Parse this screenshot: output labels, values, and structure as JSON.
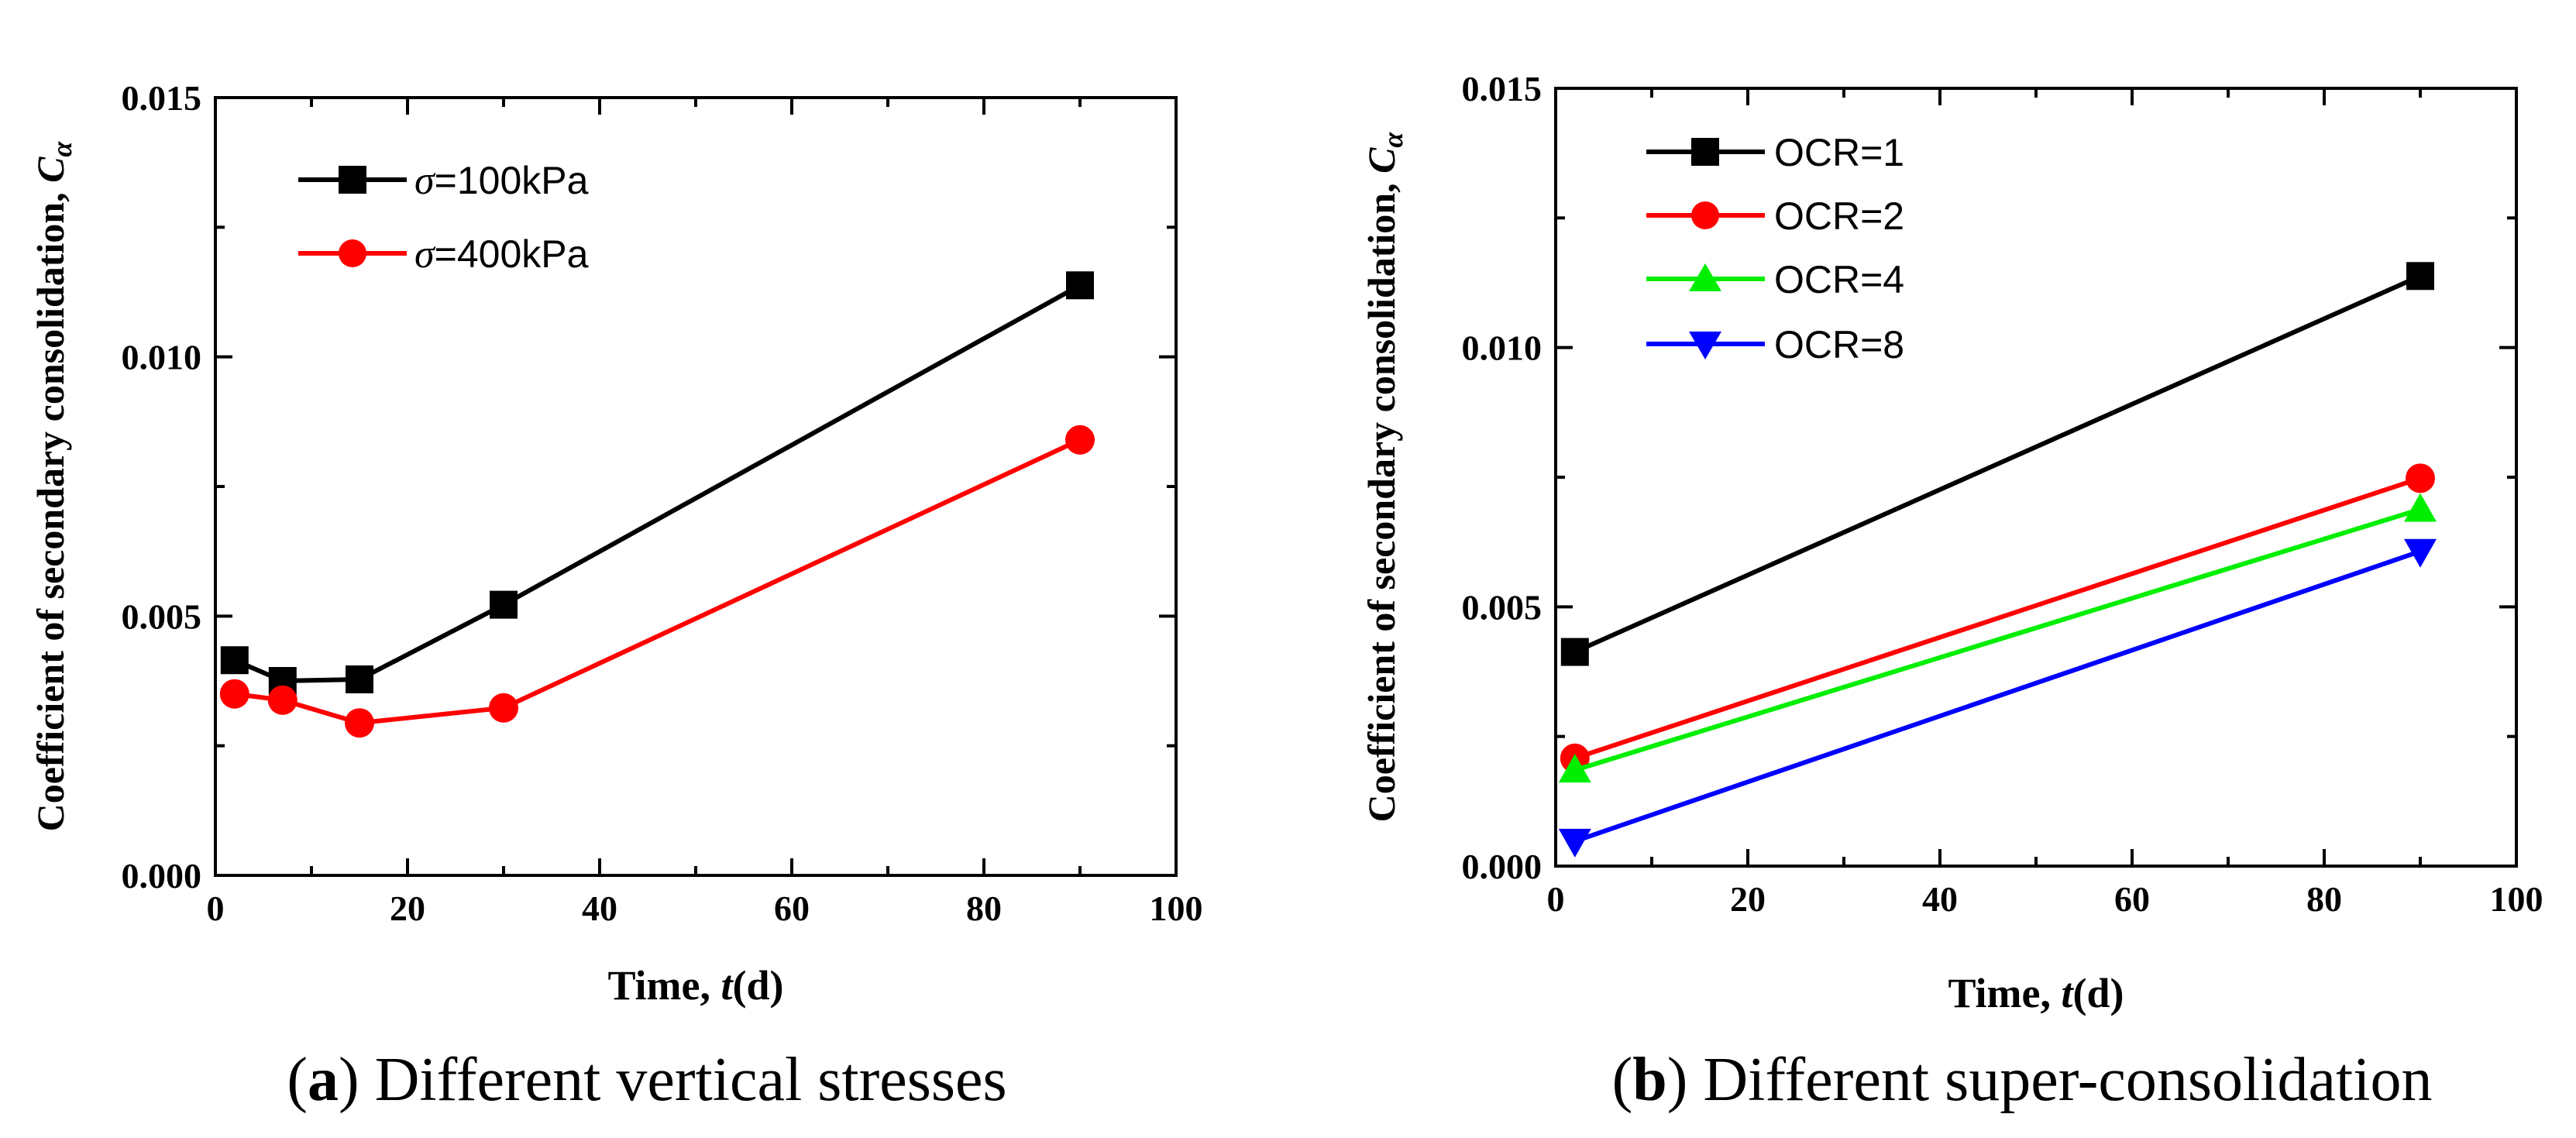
{
  "chart_data": [
    {
      "type": "line",
      "caption": {
        "open": "(",
        "letter": "a",
        "close": ")",
        "text": " Different vertical stresses"
      },
      "xlabel": {
        "text": "Time, ",
        "italic": "t",
        "unit": "(d)"
      },
      "ylabel": {
        "text": "Coefficient of secondary consolidation, ",
        "italic": "C",
        "subscript": "α"
      },
      "xlim": [
        0,
        100
      ],
      "ylim": [
        0,
        0.015
      ],
      "xticks": [
        "0",
        "20",
        "40",
        "60",
        "80",
        "100"
      ],
      "yticks": [
        "0.000",
        "0.005",
        "0.010",
        "0.015"
      ],
      "grid": false,
      "legend_position": "top-left",
      "series": [
        {
          "name": "σ=100kPa",
          "symbol": "σ",
          "label_rest": "=100kPa",
          "color": "#000000",
          "marker": "square",
          "x": [
            2,
            7,
            15,
            30,
            90
          ],
          "y": [
            0.00415,
            0.00375,
            0.00378,
            0.00522,
            0.01138
          ]
        },
        {
          "name": "σ=400kPa",
          "symbol": "σ",
          "label_rest": "=400kPa",
          "color": "#ff0000",
          "marker": "circle",
          "x": [
            2,
            7,
            15,
            30,
            90
          ],
          "y": [
            0.0035,
            0.00338,
            0.00294,
            0.00323,
            0.0084
          ]
        }
      ]
    },
    {
      "type": "line",
      "caption": {
        "open": "(",
        "letter": "b",
        "close": ")",
        "text": " Different super-consolidation"
      },
      "xlabel": {
        "text": "Time, ",
        "italic": "t",
        "unit": "(d)"
      },
      "ylabel": {
        "text": "Coefficient of secondary consolidation, ",
        "italic": "C",
        "subscript": "α"
      },
      "xlim": [
        0,
        100
      ],
      "ylim": [
        0,
        0.015
      ],
      "xticks": [
        "0",
        "20",
        "40",
        "60",
        "80",
        "100"
      ],
      "yticks": [
        "0.000",
        "0.005",
        "0.010",
        "0.015"
      ],
      "grid": false,
      "legend_position": "top-left",
      "series": [
        {
          "name": "OCR=1",
          "symbol": "",
          "label_rest": "OCR=1",
          "color": "#000000",
          "marker": "square",
          "x": [
            2,
            90
          ],
          "y": [
            0.00413,
            0.01138
          ]
        },
        {
          "name": "OCR=2",
          "symbol": "",
          "label_rest": "OCR=2",
          "color": "#ff0000",
          "marker": "circle",
          "x": [
            2,
            90
          ],
          "y": [
            0.00208,
            0.00748
          ]
        },
        {
          "name": "OCR=4",
          "symbol": "",
          "label_rest": "OCR=4",
          "color": "#00ee00",
          "marker": "triangle-up",
          "x": [
            2,
            90
          ],
          "y": [
            0.00185,
            0.00688
          ]
        },
        {
          "name": "OCR=8",
          "symbol": "",
          "label_rest": "OCR=8",
          "color": "#0000ff",
          "marker": "triangle-down",
          "x": [
            2,
            90
          ],
          "y": [
            0.00048,
            0.00607
          ]
        }
      ]
    }
  ]
}
